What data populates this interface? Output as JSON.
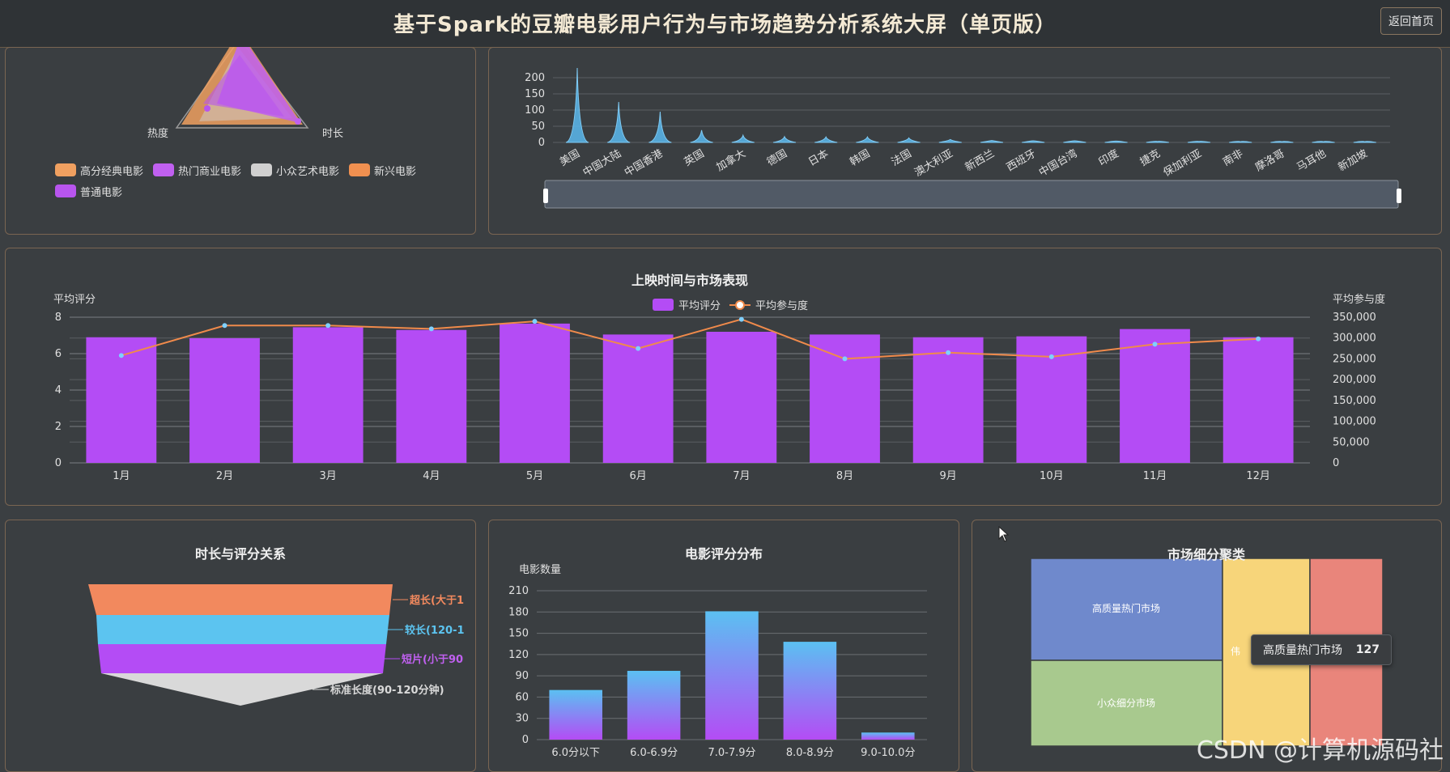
{
  "header": {
    "title": "基于Spark的豆瓣电影用户行为与市场趋势分析系统大屏（单页版）",
    "back_label": "返回首页"
  },
  "radar": {
    "indicators": [
      "热度",
      "时长"
    ],
    "legend": [
      {
        "name": "高分经典电影",
        "color": "#f0a060"
      },
      {
        "name": "热门商业电影",
        "color": "#c060f0"
      },
      {
        "name": "小众艺术电影",
        "color": "#d0d0d0"
      },
      {
        "name": "新兴电影",
        "color": "#f09050"
      },
      {
        "name": "普通电影",
        "color": "#b855ee"
      }
    ]
  },
  "country_chart": {
    "y_ticks": [
      "0",
      "50",
      "100",
      "150",
      "200"
    ],
    "ylim": [
      0,
      200
    ],
    "categories": [
      "美国",
      "中国大陆",
      "中国香港",
      "英国",
      "加拿大",
      "德国",
      "日本",
      "韩国",
      "法国",
      "澳大利亚",
      "新西兰",
      "西班牙",
      "中国台湾",
      "印度",
      "捷克",
      "保加利亚",
      "南非",
      "摩洛哥",
      "马耳他",
      "新加坡"
    ],
    "values": [
      230,
      125,
      95,
      38,
      22,
      18,
      17,
      17,
      14,
      9,
      6,
      5,
      5,
      4,
      3,
      3,
      2,
      2,
      2,
      2
    ],
    "color": "#5ab8ee"
  },
  "chart_data": [
    {
      "type": "bar",
      "title": "上映时间与市场表现",
      "categories": [
        "1月",
        "2月",
        "3月",
        "4月",
        "5月",
        "6月",
        "7月",
        "8月",
        "9月",
        "10月",
        "11月",
        "12月"
      ],
      "series": [
        {
          "name": "平均评分",
          "type": "bar",
          "axis": "left",
          "color": "#b44cf5",
          "values": [
            6.9,
            6.85,
            7.45,
            7.3,
            7.65,
            7.05,
            7.2,
            7.05,
            6.9,
            6.95,
            7.35,
            6.9
          ]
        },
        {
          "name": "平均参与度",
          "type": "line",
          "axis": "right",
          "color": "#f08a4b",
          "values": [
            258000,
            330000,
            330000,
            322000,
            340000,
            275000,
            345000,
            250000,
            265000,
            255000,
            285000,
            298000
          ]
        }
      ],
      "ylabel": "平均评分",
      "y2label": "平均参与度",
      "ylim": [
        0,
        8
      ],
      "y2lim": [
        0,
        350000
      ],
      "y_ticks": [
        "0",
        "2",
        "4",
        "6",
        "8"
      ],
      "y2_ticks": [
        "0",
        "50,000",
        "100,000",
        "150,000",
        "200,000",
        "250,000",
        "300,000",
        "350,000"
      ]
    },
    {
      "type": "bar",
      "title": "电影评分分布",
      "ylabel": "电影数量",
      "categories": [
        "6.0分以下",
        "6.0-6.9分",
        "7.0-7.9分",
        "8.0-8.9分",
        "9.0-10.0分"
      ],
      "values": [
        70,
        97,
        181,
        138,
        10
      ],
      "ylim": [
        0,
        210
      ],
      "y_ticks": [
        "0",
        "30",
        "60",
        "90",
        "120",
        "150",
        "180",
        "210"
      ]
    }
  ],
  "funnel": {
    "title": "时长与评分关系",
    "layers": [
      {
        "label": "超长(大于1",
        "color": "#f2895e"
      },
      {
        "label": "较长(120-1",
        "color": "#5cc4f0"
      },
      {
        "label": "短片(小于90",
        "color": "#b44cf5"
      },
      {
        "label": "标准长度(90-120分钟)",
        "color": "#d9d9d9"
      }
    ]
  },
  "treemap": {
    "title": "市场细分聚类",
    "cells": [
      {
        "label": "高质量热门市场",
        "color": "#6f89cc"
      },
      {
        "label": "小众细分市场",
        "color": "#a8c98e"
      },
      {
        "label": "",
        "color": "#f7d57a"
      },
      {
        "label": "",
        "color": "#e9857b"
      }
    ],
    "partial_label": "伟",
    "tooltip": {
      "name": "高质量热门市场",
      "value": "127"
    }
  },
  "watermark": "CSDN @计算机源码社"
}
